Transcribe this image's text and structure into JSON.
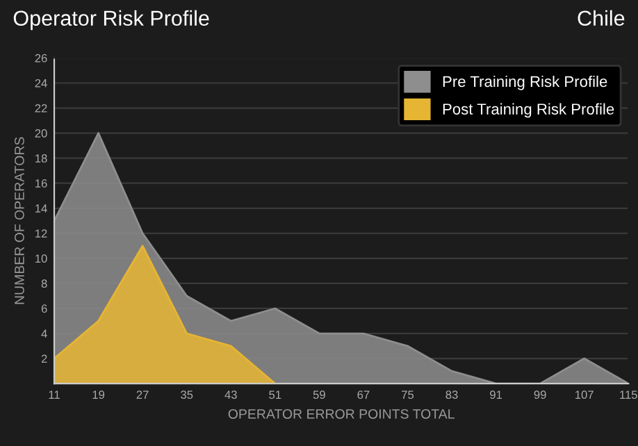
{
  "chart_data": {
    "type": "area",
    "title": "Operator Risk Profile",
    "subtitle": "Chile",
    "xlabel": "OPERATOR ERROR POINTS TOTAL",
    "ylabel": "NUMBER OF OPERATORS",
    "x": [
      11,
      19,
      27,
      35,
      43,
      51,
      59,
      67,
      75,
      83,
      91,
      99,
      107,
      115
    ],
    "series": [
      {
        "name": "Pre Training Risk Profile",
        "color": "#8e8e8e",
        "values": [
          13,
          20,
          12,
          7,
          5,
          6,
          4,
          4,
          3,
          1,
          0,
          0,
          2,
          0
        ]
      },
      {
        "name": "Post Training Risk Profile",
        "color": "#e6b534",
        "x": [
          11,
          19,
          27,
          35,
          43,
          51
        ],
        "values": [
          2,
          5,
          11,
          4,
          3,
          0
        ]
      }
    ],
    "xlim": [
      11,
      115
    ],
    "ylim": [
      0,
      26
    ],
    "xticks": [
      11,
      19,
      27,
      35,
      43,
      51,
      59,
      67,
      75,
      83,
      91,
      99,
      107,
      115
    ],
    "yticks": [
      2,
      4,
      6,
      8,
      10,
      12,
      14,
      16,
      18,
      20,
      22,
      24,
      26
    ],
    "grid": "y",
    "legend": "top right"
  }
}
